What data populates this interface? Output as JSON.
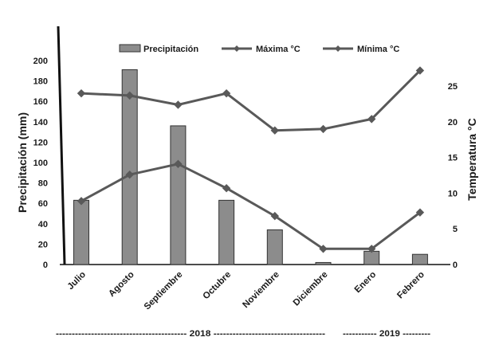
{
  "chart_data": {
    "type": "bar",
    "categories": [
      "Julio",
      "Agosto",
      "Septiembre",
      "Octubre",
      "Noviembre",
      "Diciembre",
      "Enero",
      "Febrero"
    ],
    "series": [
      {
        "name": "Precipitación",
        "type": "bar",
        "axis": "left",
        "values": [
          63,
          191,
          136,
          63,
          34,
          2,
          13,
          10
        ]
      },
      {
        "name": "Máxima °C",
        "type": "line",
        "axis": "right",
        "values": [
          24,
          23.7,
          22.4,
          24,
          18.8,
          19,
          20.4,
          27.2
        ]
      },
      {
        "name": "Mínima °C",
        "type": "line",
        "axis": "right",
        "values": [
          8.9,
          12.6,
          14.1,
          10.7,
          6.8,
          2.2,
          2.2,
          7.3
        ]
      }
    ],
    "ylabel": "Precipitación (mm)",
    "ylabel_right": "Temperatura °C",
    "ylim": [
      0,
      200
    ],
    "ylim_right": [
      0,
      28.6
    ],
    "yticks": [
      "0",
      "20",
      "40",
      "60",
      "80",
      "100",
      "120",
      "140",
      "160",
      "180",
      "200"
    ],
    "yticks_right": [
      "0",
      "5",
      "10",
      "15",
      "20",
      "25"
    ],
    "grid": false,
    "legend_position": "top",
    "colors": {
      "bar_fill": "#8c8c8c",
      "bar_stroke": "#333333",
      "line": "#595959",
      "axis": "#111111"
    },
    "year_labels": [
      {
        "text": "2018",
        "left_dashes": "-----------------------------------------",
        "right_dashes": "-----------------------------------"
      },
      {
        "text": "2019",
        "left_dashes": "-----------",
        "right_dashes": "---------"
      }
    ]
  }
}
